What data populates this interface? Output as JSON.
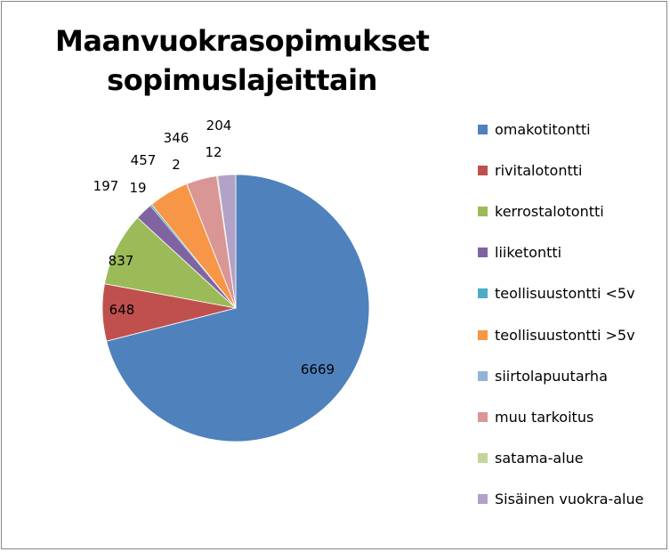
{
  "chart_data": {
    "type": "pie",
    "title": [
      "Maanvuokrasopimukset",
      "sopimuslajeittain"
    ],
    "categories": [
      "omakotitontti",
      "rivitalotontti",
      "kerrostalotontti",
      "liiketontti",
      "teollisuustontti <5v",
      "teollisuustontti >5v",
      "siirtolapuutarha",
      "muu tarkoitus",
      "satama-alue",
      "Sisäinen vuokra-alue"
    ],
    "values": [
      6669,
      648,
      837,
      197,
      19,
      457,
      2,
      346,
      12,
      204
    ],
    "data_labels": [
      "6669",
      "648",
      "837",
      "197",
      "19",
      "457",
      "2",
      "346",
      "12",
      "204"
    ],
    "colors": [
      "#4f81bd",
      "#c0504d",
      "#9bbb59",
      "#8064a2",
      "#4bacc6",
      "#f79646",
      "#95b3d7",
      "#d99694",
      "#c3d69b",
      "#b2a2c7"
    ],
    "legend_position": "right"
  }
}
